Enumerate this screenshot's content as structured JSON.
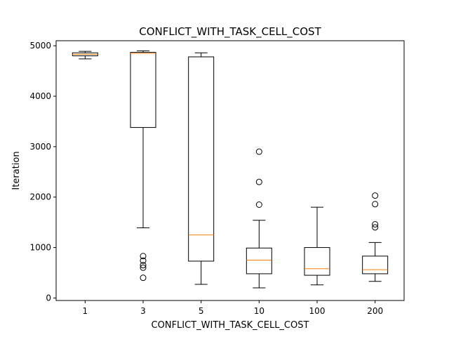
{
  "chart_data": {
    "type": "boxplot",
    "title": "CONFLICT_WITH_TASK_CELL_COST",
    "xlabel": "CONFLICT_WITH_TASK_CELL_COST",
    "ylabel": "Iteration",
    "ylim": [
      -50,
      5100
    ],
    "yticks": [
      0,
      1000,
      2000,
      3000,
      4000,
      5000
    ],
    "grid": false,
    "categories": [
      "1",
      "3",
      "5",
      "10",
      "100",
      "200"
    ],
    "boxes": [
      {
        "whisker_low": 4740,
        "q1": 4800,
        "median": 4830,
        "q3": 4860,
        "whisker_high": 4890,
        "outliers": []
      },
      {
        "whisker_low": 1390,
        "q1": 3380,
        "median": 4850,
        "q3": 4870,
        "whisker_high": 4900,
        "outliers": [
          830,
          740,
          650,
          600,
          400
        ]
      },
      {
        "whisker_low": 270,
        "q1": 730,
        "median": 1250,
        "q3": 4780,
        "whisker_high": 4860,
        "outliers": []
      },
      {
        "whisker_low": 200,
        "q1": 480,
        "median": 750,
        "q3": 990,
        "whisker_high": 1540,
        "outliers": [
          1850,
          2300,
          2900
        ]
      },
      {
        "whisker_low": 260,
        "q1": 450,
        "median": 580,
        "q3": 1000,
        "whisker_high": 1800,
        "outliers": []
      },
      {
        "whisker_low": 330,
        "q1": 480,
        "median": 560,
        "q3": 830,
        "whisker_high": 1100,
        "outliers": [
          1400,
          1460,
          1860,
          2030
        ]
      }
    ],
    "colors": {
      "box": "#000000",
      "median": "#ff7f0e",
      "background": "#ffffff"
    }
  }
}
